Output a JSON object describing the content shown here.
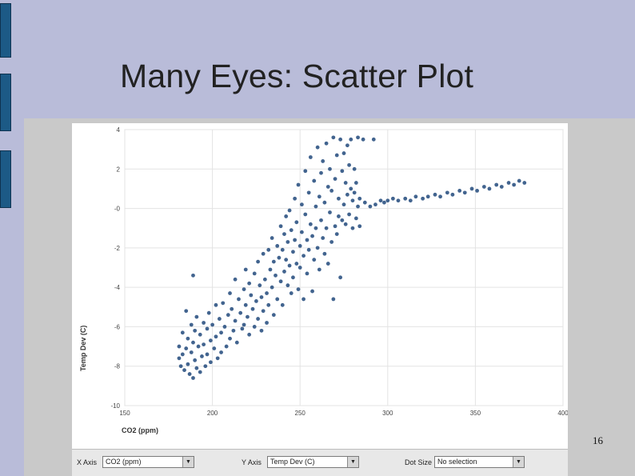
{
  "slide": {
    "title": "Many Eyes: Scatter Plot",
    "page_number": "16"
  },
  "controls": {
    "x_axis_label": "X Axis",
    "x_axis_value": "CO2 (ppm)",
    "y_axis_label": "Y Axis",
    "y_axis_value": "Temp Dev (C)",
    "dot_size_label": "Dot Size",
    "dot_size_value": "No selection"
  },
  "colors": {
    "dot": "#2e5383",
    "tab": "#1c5a86",
    "background": "#b9bcd9"
  },
  "chart_data": {
    "type": "scatter",
    "title": "",
    "xlabel": "CO2 (ppm)",
    "ylabel": "Temp Dev (C)",
    "xlim": [
      150,
      400
    ],
    "ylim": [
      -10,
      4
    ],
    "x_ticks": [
      "150",
      "200",
      "250",
      "300",
      "350",
      "400"
    ],
    "y_ticks": [
      "4",
      "2",
      "-0",
      "-2",
      "-4",
      "-6",
      "-8",
      "-10"
    ],
    "y_tick_values": [
      4,
      2,
      0,
      -2,
      -4,
      -6,
      -8,
      -10
    ],
    "x_tick_values": [
      150,
      200,
      250,
      300,
      350,
      400
    ],
    "grid": true,
    "series": [
      {
        "points": [
          [
            181,
            -7.0
          ],
          [
            181,
            -7.6
          ],
          [
            182,
            -8.0
          ],
          [
            183,
            -6.3
          ],
          [
            183,
            -7.4
          ],
          [
            184,
            -8.2
          ],
          [
            185,
            -5.2
          ],
          [
            185,
            -7.1
          ],
          [
            186,
            -6.6
          ],
          [
            186,
            -7.9
          ],
          [
            187,
            -8.4
          ],
          [
            188,
            -5.9
          ],
          [
            188,
            -7.3
          ],
          [
            189,
            -3.4
          ],
          [
            189,
            -6.8
          ],
          [
            189,
            -8.6
          ],
          [
            190,
            -6.2
          ],
          [
            190,
            -7.7
          ],
          [
            191,
            -5.5
          ],
          [
            191,
            -8.1
          ],
          [
            192,
            -7.0
          ],
          [
            193,
            -6.4
          ],
          [
            193,
            -8.3
          ],
          [
            194,
            -7.5
          ],
          [
            195,
            -5.8
          ],
          [
            195,
            -6.9
          ],
          [
            196,
            -8.0
          ],
          [
            197,
            -6.1
          ],
          [
            197,
            -7.4
          ],
          [
            198,
            -5.3
          ],
          [
            199,
            -6.7
          ],
          [
            199,
            -7.8
          ],
          [
            200,
            -5.9
          ],
          [
            201,
            -7.1
          ],
          [
            202,
            -4.9
          ],
          [
            202,
            -6.5
          ],
          [
            203,
            -7.6
          ],
          [
            204,
            -5.6
          ],
          [
            205,
            -6.3
          ],
          [
            205,
            -7.3
          ],
          [
            206,
            -4.8
          ],
          [
            207,
            -6.0
          ],
          [
            208,
            -7.0
          ],
          [
            209,
            -5.4
          ],
          [
            210,
            -4.3
          ],
          [
            210,
            -6.6
          ],
          [
            211,
            -5.1
          ],
          [
            212,
            -6.2
          ],
          [
            213,
            -3.6
          ],
          [
            213,
            -5.7
          ],
          [
            214,
            -6.8
          ],
          [
            215,
            -4.6
          ],
          [
            216,
            -5.3
          ],
          [
            217,
            -6.1
          ],
          [
            218,
            -4.1
          ],
          [
            218,
            -5.9
          ],
          [
            219,
            -3.1
          ],
          [
            219,
            -4.9
          ],
          [
            220,
            -5.5
          ],
          [
            221,
            -3.8
          ],
          [
            221,
            -6.4
          ],
          [
            222,
            -4.4
          ],
          [
            223,
            -5.1
          ],
          [
            224,
            -3.3
          ],
          [
            224,
            -6.0
          ],
          [
            225,
            -4.7
          ],
          [
            226,
            -2.7
          ],
          [
            226,
            -5.6
          ],
          [
            227,
            -3.9
          ],
          [
            228,
            -4.5
          ],
          [
            228,
            -6.2
          ],
          [
            229,
            -2.3
          ],
          [
            229,
            -5.2
          ],
          [
            230,
            -3.6
          ],
          [
            231,
            -4.3
          ],
          [
            231,
            -5.8
          ],
          [
            232,
            -2.1
          ],
          [
            232,
            -4.9
          ],
          [
            233,
            -3.1
          ],
          [
            234,
            -1.5
          ],
          [
            234,
            -4.0
          ],
          [
            235,
            -2.7
          ],
          [
            235,
            -5.4
          ],
          [
            236,
            -3.4
          ],
          [
            237,
            -1.9
          ],
          [
            237,
            -4.6
          ],
          [
            238,
            -2.5
          ],
          [
            239,
            -0.9
          ],
          [
            239,
            -3.7
          ],
          [
            240,
            -2.1
          ],
          [
            240,
            -4.9
          ],
          [
            241,
            -1.3
          ],
          [
            241,
            -3.2
          ],
          [
            242,
            -0.4
          ],
          [
            242,
            -2.6
          ],
          [
            243,
            -3.9
          ],
          [
            243,
            -1.7
          ],
          [
            244,
            -0.1
          ],
          [
            244,
            -2.9
          ],
          [
            245,
            -4.3
          ],
          [
            245,
            -1.1
          ],
          [
            246,
            -2.2
          ],
          [
            246,
            -3.5
          ],
          [
            247,
            0.5
          ],
          [
            247,
            -1.6
          ],
          [
            248,
            -2.8
          ],
          [
            248,
            -0.7
          ],
          [
            249,
            -4.1
          ],
          [
            249,
            1.2
          ],
          [
            250,
            -1.9
          ],
          [
            250,
            -3.0
          ],
          [
            251,
            0.2
          ],
          [
            251,
            -1.2
          ],
          [
            252,
            -2.4
          ],
          [
            252,
            -4.6
          ],
          [
            253,
            1.9
          ],
          [
            253,
            -0.3
          ],
          [
            254,
            -1.6
          ],
          [
            254,
            -3.3
          ],
          [
            255,
            0.8
          ],
          [
            255,
            -2.1
          ],
          [
            256,
            2.6
          ],
          [
            256,
            -0.8
          ],
          [
            257,
            -1.4
          ],
          [
            257,
            -4.2
          ],
          [
            258,
            1.4
          ],
          [
            258,
            -2.6
          ],
          [
            259,
            0.1
          ],
          [
            259,
            -1.0
          ],
          [
            260,
            3.1
          ],
          [
            260,
            -2.0
          ],
          [
            261,
            0.6
          ],
          [
            261,
            -3.1
          ],
          [
            262,
            1.8
          ],
          [
            262,
            -0.6
          ],
          [
            263,
            -1.5
          ],
          [
            263,
            2.4
          ],
          [
            264,
            -2.3
          ],
          [
            264,
            0.3
          ],
          [
            265,
            3.3
          ],
          [
            265,
            -1.0
          ],
          [
            266,
            1.1
          ],
          [
            266,
            -2.8
          ],
          [
            267,
            -0.2
          ],
          [
            267,
            2.0
          ],
          [
            268,
            -1.7
          ],
          [
            268,
            0.9
          ],
          [
            269,
            3.6
          ],
          [
            269,
            -4.6
          ],
          [
            270,
            1.5
          ],
          [
            270,
            -0.9
          ],
          [
            271,
            2.7
          ],
          [
            271,
            -1.3
          ],
          [
            272,
            0.5
          ],
          [
            272,
            -0.4
          ],
          [
            273,
            3.5
          ],
          [
            273,
            -3.5
          ],
          [
            274,
            1.9
          ],
          [
            274,
            -0.6
          ],
          [
            275,
            0.2
          ],
          [
            275,
            2.8
          ],
          [
            276,
            -0.8
          ],
          [
            276,
            1.3
          ],
          [
            277,
            3.2
          ],
          [
            277,
            0.7
          ],
          [
            278,
            -0.3
          ],
          [
            278,
            2.2
          ],
          [
            279,
            1.0
          ],
          [
            279,
            3.5
          ],
          [
            280,
            0.4
          ],
          [
            280,
            -1.0
          ],
          [
            281,
            2.0
          ],
          [
            281,
            0.8
          ],
          [
            282,
            1.3
          ],
          [
            282,
            -0.5
          ],
          [
            283,
            3.6
          ],
          [
            283,
            0.1
          ],
          [
            284,
            0.5
          ],
          [
            284,
            -0.9
          ],
          [
            286,
            3.5
          ],
          [
            287,
            0.3
          ],
          [
            290,
            0.1
          ],
          [
            292,
            3.5
          ],
          [
            293,
            0.2
          ],
          [
            296,
            0.4
          ],
          [
            298,
            0.3
          ],
          [
            300,
            0.4
          ],
          [
            303,
            0.5
          ],
          [
            306,
            0.4
          ],
          [
            310,
            0.5
          ],
          [
            313,
            0.4
          ],
          [
            316,
            0.6
          ],
          [
            320,
            0.5
          ],
          [
            323,
            0.6
          ],
          [
            327,
            0.7
          ],
          [
            330,
            0.6
          ],
          [
            334,
            0.8
          ],
          [
            337,
            0.7
          ],
          [
            341,
            0.9
          ],
          [
            344,
            0.8
          ],
          [
            348,
            1.0
          ],
          [
            351,
            0.9
          ],
          [
            355,
            1.1
          ],
          [
            358,
            1.0
          ],
          [
            362,
            1.2
          ],
          [
            365,
            1.1
          ],
          [
            369,
            1.3
          ],
          [
            372,
            1.2
          ],
          [
            375,
            1.4
          ],
          [
            378,
            1.3
          ]
        ]
      }
    ]
  }
}
